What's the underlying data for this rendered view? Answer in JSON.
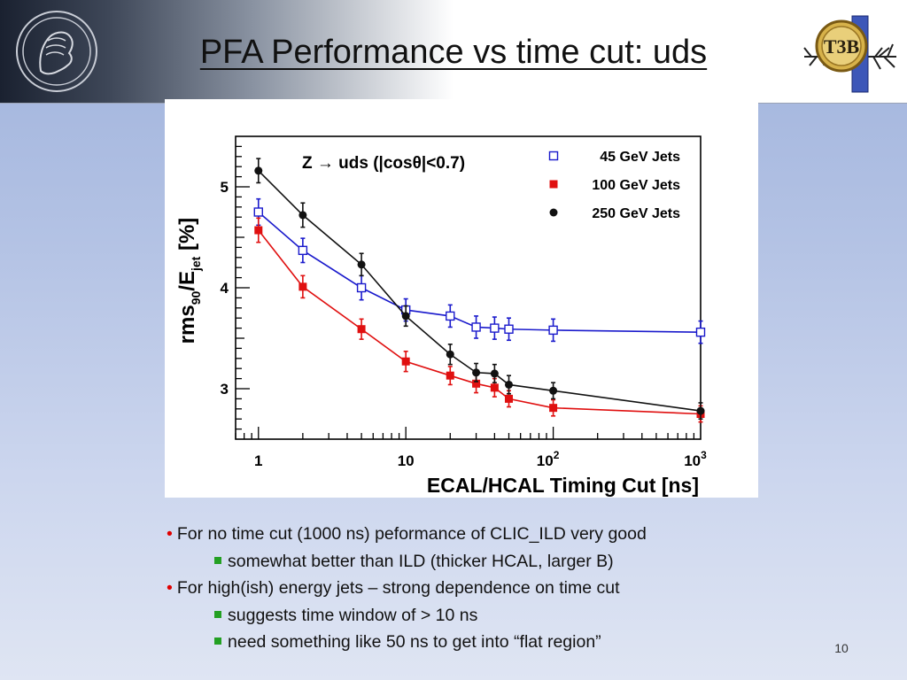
{
  "slide": {
    "title": "PFA Performance vs time cut: uds",
    "page_number": "10",
    "logo_text": "T3B"
  },
  "bullets": [
    {
      "level": 1,
      "text": "For no time cut (1000 ns) peformance of CLIC_ILD very good"
    },
    {
      "level": 2,
      "text": "somewhat better than ILD (thicker HCAL, larger B)"
    },
    {
      "level": 1,
      "text": "For high(ish) energy jets – strong dependence on time cut"
    },
    {
      "level": 2,
      "text": "suggests time window of > 10 ns"
    },
    {
      "level": 2,
      "text": "need something like 50 ns to get into “flat region”"
    }
  ],
  "colors": {
    "bullet_dot": "#e00000",
    "sub_bullet": "#23a023",
    "series_45": "#1a1acc",
    "series_100": "#e01010",
    "series_250": "#111111"
  },
  "chart_data": {
    "type": "scatter",
    "annotation": "Z → uds (|cosθ|<0.7)",
    "xlabel": "ECAL/HCAL Timing Cut [ns]",
    "ylabel_main": "rms",
    "ylabel_sub90": "90",
    "ylabel_mid": "/E",
    "ylabel_subjet": "jet",
    "ylabel_unit": "[%]",
    "x_scale": "log",
    "xlim": [
      0.7,
      1000
    ],
    "ylim": [
      2.5,
      5.5
    ],
    "x_ticks": [
      {
        "value": 1,
        "base": "1",
        "exp": ""
      },
      {
        "value": 10,
        "base": "10",
        "exp": ""
      },
      {
        "value": 100,
        "base": "10",
        "exp": "2"
      },
      {
        "value": 1000,
        "base": "10",
        "exp": "3"
      }
    ],
    "y_ticks": [
      3,
      4,
      5
    ],
    "legend_position": "top-right",
    "series": [
      {
        "name": "45 GeV Jets",
        "marker": "open-square",
        "color": "#1a1acc",
        "x": [
          1,
          2,
          5,
          10,
          20,
          30,
          40,
          50,
          100,
          1000
        ],
        "y": [
          4.75,
          4.37,
          4.0,
          3.78,
          3.72,
          3.61,
          3.6,
          3.59,
          3.58,
          3.56
        ],
        "err": [
          0.13,
          0.12,
          0.12,
          0.11,
          0.11,
          0.11,
          0.11,
          0.11,
          0.11,
          0.11
        ]
      },
      {
        "name": "100 GeV Jets",
        "marker": "filled-square",
        "color": "#e01010",
        "x": [
          1,
          2,
          5,
          10,
          20,
          30,
          40,
          50,
          100,
          1000
        ],
        "y": [
          4.57,
          4.01,
          3.59,
          3.27,
          3.13,
          3.05,
          3.01,
          2.9,
          2.81,
          2.75
        ],
        "err": [
          0.12,
          0.11,
          0.1,
          0.1,
          0.09,
          0.09,
          0.09,
          0.08,
          0.08,
          0.08
        ]
      },
      {
        "name": "250 GeV Jets",
        "marker": "filled-circle",
        "color": "#111111",
        "x": [
          1,
          2,
          5,
          10,
          20,
          30,
          40,
          50,
          100,
          1000
        ],
        "y": [
          5.16,
          4.72,
          4.23,
          3.72,
          3.34,
          3.16,
          3.15,
          3.04,
          2.98,
          2.78
        ],
        "err": [
          0.12,
          0.12,
          0.11,
          0.1,
          0.1,
          0.09,
          0.09,
          0.09,
          0.08,
          0.08
        ]
      }
    ]
  }
}
